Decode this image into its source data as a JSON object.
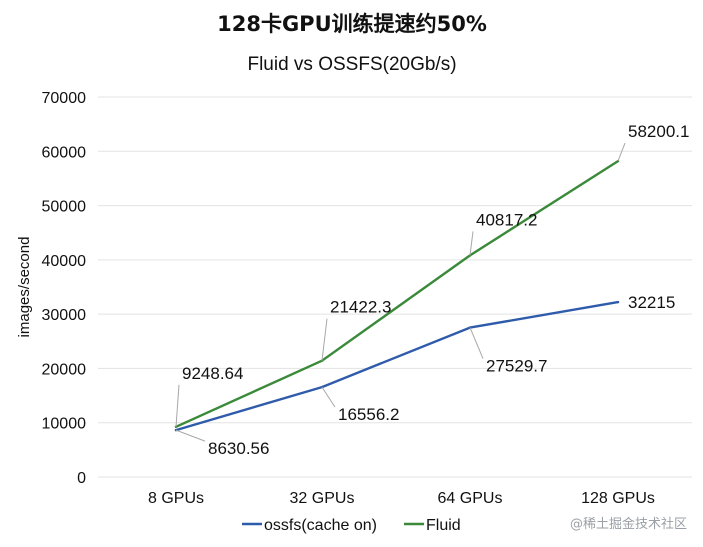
{
  "chart_data": {
    "type": "line",
    "title": "128卡GPU训练提速约50%",
    "subtitle": "Fluid vs OSSFS(20Gb/s)",
    "xlabel": "",
    "ylabel": "images/second",
    "categories": [
      "8 GPUs",
      "32 GPUs",
      "64 GPUs",
      "128 GPUs"
    ],
    "ylim": [
      0,
      70000
    ],
    "yticks": [
      0,
      10000,
      20000,
      30000,
      40000,
      50000,
      60000,
      70000
    ],
    "grid": true,
    "legend_position": "bottom",
    "series": [
      {
        "name": "ossfs(cache on)",
        "color": "#2f5bab",
        "values": [
          8630.56,
          16556.2,
          27529.7,
          32215
        ],
        "labels": [
          "8630.56",
          "16556.2",
          "27529.7",
          "32215"
        ]
      },
      {
        "name": "Fluid",
        "color": "#3a8a3a",
        "values": [
          9248.64,
          21422.3,
          40817.2,
          58200.1
        ],
        "labels": [
          "9248.64",
          "21422.3",
          "40817.2",
          "58200.1"
        ]
      }
    ]
  },
  "watermark": {
    "text": "@稀土掘金技术社区"
  }
}
